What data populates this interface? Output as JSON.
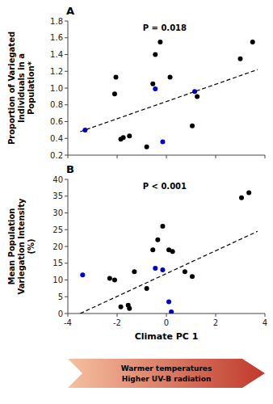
{
  "chart_data": [
    {
      "type": "scatter",
      "title": "A",
      "annotations": [
        "P = 0.018"
      ],
      "ylabel": "Proportion of Variegated\nIndividuals in a\nPopulation*",
      "xlim": [
        -4,
        4
      ],
      "xticks": [
        -4,
        -2,
        0,
        2,
        4
      ],
      "ylim": [
        0.2,
        1.8
      ],
      "yticks": [
        0.2,
        0.4,
        0.6,
        0.8,
        {
          "value": 1,
          "label": "1.0"
        },
        1.2,
        1.4,
        1.6,
        1.8
      ],
      "grid": false,
      "tick_labels": "y",
      "series": [
        {
          "type": "scatter",
          "color": "#000000",
          "x": [
            -2.1,
            -2.05,
            -1.85,
            -1.75,
            -1.5,
            -0.8,
            -0.55,
            -0.45,
            -0.25,
            0.15,
            1.05,
            1.25,
            3.0,
            3.5
          ],
          "values": [
            0.93,
            1.13,
            0.39,
            0.41,
            0.43,
            0.3,
            1.05,
            1.4,
            1.55,
            1.13,
            0.55,
            0.9,
            1.35,
            1.55
          ]
        },
        {
          "type": "scatter",
          "color": "#0000cc",
          "x": [
            -3.3,
            -0.45,
            -0.15,
            1.15
          ],
          "values": [
            0.5,
            0.99,
            0.36,
            0.96
          ]
        },
        {
          "type": "line",
          "line_style": "dashed",
          "color": "#000000",
          "x": [
            -3.5,
            3.7
          ],
          "values": [
            0.48,
            1.22
          ]
        }
      ]
    },
    {
      "type": "scatter",
      "title": "B",
      "annotations": [
        "P < 0.001",
        "Warmer temperatures",
        "Higher UV-B radiation"
      ],
      "ylabel": "Mean Population\nVariegation Intensity\n(%)",
      "xlabel": "Climate PC 1",
      "xlim": [
        -4,
        4
      ],
      "xticks": [
        -4,
        -2,
        0,
        2,
        4
      ],
      "ylim": [
        0,
        40
      ],
      "yticks": [
        0,
        5,
        10,
        15,
        20,
        25,
        30,
        35,
        40
      ],
      "grid": false,
      "series": [
        {
          "type": "scatter",
          "color": "#000000",
          "x": [
            -2.3,
            -2.1,
            -1.85,
            -1.55,
            -1.5,
            -1.3,
            -0.8,
            -0.55,
            -0.35,
            -0.15,
            0.1,
            0.25,
            0.75,
            1.05,
            3.05,
            3.35
          ],
          "values": [
            10.5,
            10.0,
            2.0,
            2.5,
            1.5,
            12.5,
            7.5,
            19.0,
            22.0,
            26.0,
            19.0,
            18.5,
            12.5,
            11.0,
            34.5,
            36.0
          ]
        },
        {
          "type": "scatter",
          "color": "#0000cc",
          "x": [
            -3.4,
            -0.45,
            -0.15,
            0.1,
            0.2
          ],
          "values": [
            11.5,
            13.5,
            13.0,
            3.5,
            0.5
          ]
        },
        {
          "type": "line",
          "line_style": "dashed",
          "color": "#000000",
          "x": [
            -3.5,
            3.7
          ],
          "values": [
            0.0,
            24.5
          ]
        }
      ]
    }
  ]
}
